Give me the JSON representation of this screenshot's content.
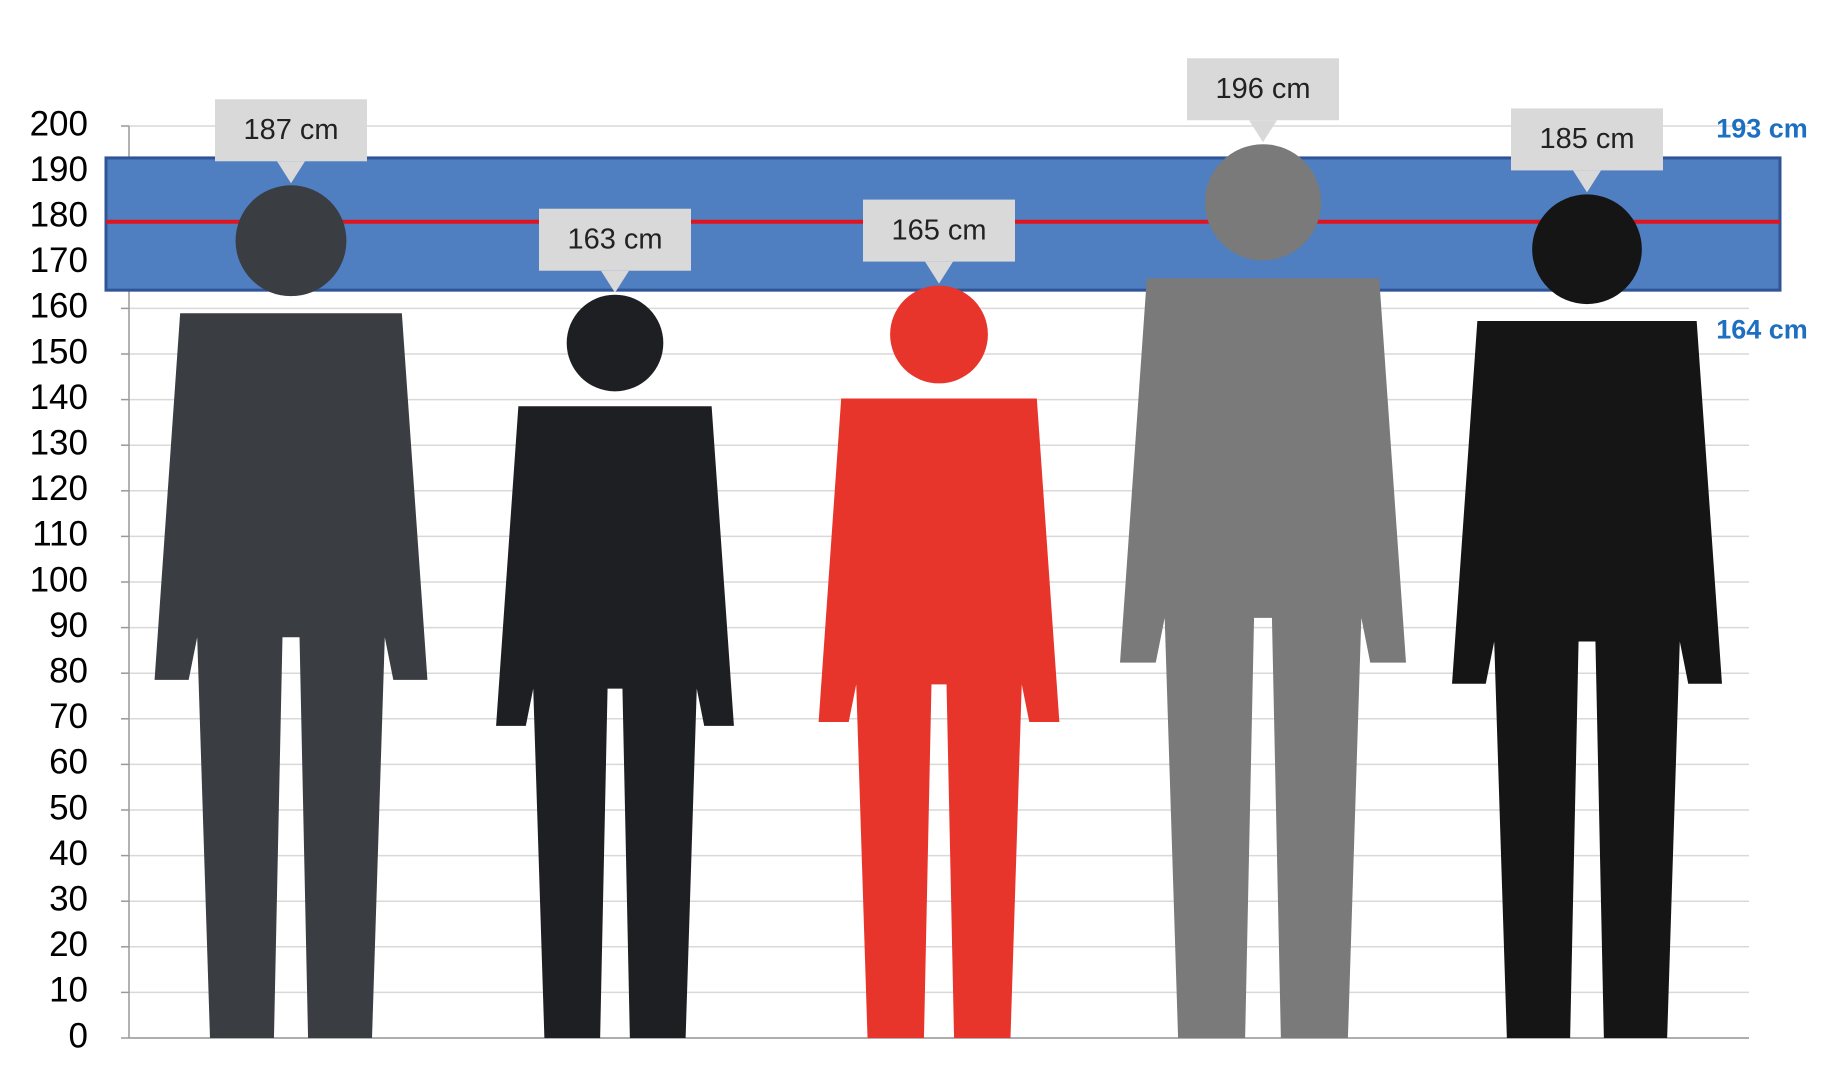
{
  "chart_data": {
    "type": "height-comparison",
    "categories": [
      null,
      null,
      null,
      null,
      null
    ],
    "values": [
      187,
      163,
      165,
      196,
      185
    ],
    "value_labels": [
      "187 cm",
      "163 cm",
      "165 cm",
      "196 cm",
      "185 cm"
    ],
    "colors": [
      "#3a3d42",
      "#1e1f23",
      "#e8352b",
      "#7a7a7a",
      "#151515"
    ],
    "band": {
      "values": [
        164,
        193
      ],
      "value_labels": [
        "164 cm",
        "193 cm"
      ],
      "color": "#4f7fc0",
      "border": "#2f5597"
    },
    "reference_line": {
      "value": 179,
      "color": "#e0141e"
    },
    "ylim": [
      0,
      200
    ],
    "yticks": [
      0,
      10,
      20,
      30,
      40,
      50,
      60,
      70,
      80,
      90,
      100,
      110,
      120,
      130,
      140,
      150,
      160,
      170,
      180,
      190,
      200
    ],
    "grid": true
  }
}
